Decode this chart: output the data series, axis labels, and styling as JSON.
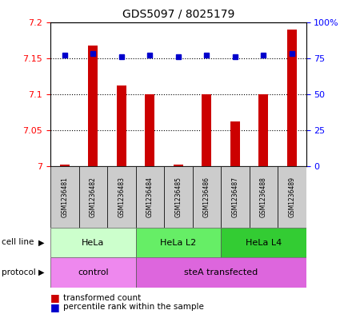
{
  "title": "GDS5097 / 8025179",
  "samples": [
    "GSM1236481",
    "GSM1236482",
    "GSM1236483",
    "GSM1236484",
    "GSM1236485",
    "GSM1236486",
    "GSM1236487",
    "GSM1236488",
    "GSM1236489"
  ],
  "bar_values": [
    7.002,
    7.167,
    7.112,
    7.1,
    7.002,
    7.1,
    7.062,
    7.1,
    7.19
  ],
  "percentile_values": [
    77,
    78,
    76,
    77,
    76,
    77,
    76,
    77,
    78
  ],
  "ylim_left": [
    7.0,
    7.2
  ],
  "ylim_right": [
    0,
    100
  ],
  "yticks_left": [
    7.0,
    7.05,
    7.1,
    7.15,
    7.2
  ],
  "yticks_right": [
    0,
    25,
    50,
    75,
    100
  ],
  "ytick_labels_left": [
    "7",
    "7.05",
    "7.1",
    "7.15",
    "7.2"
  ],
  "ytick_labels_right": [
    "0",
    "25",
    "50",
    "75",
    "100%"
  ],
  "bar_color": "#cc0000",
  "dot_color": "#0000cc",
  "bar_width": 0.35,
  "cell_line_groups": [
    {
      "label": "HeLa",
      "start": 0,
      "end": 3,
      "color": "#ccffcc"
    },
    {
      "label": "HeLa L2",
      "start": 3,
      "end": 6,
      "color": "#66ee66"
    },
    {
      "label": "HeLa L4",
      "start": 6,
      "end": 9,
      "color": "#33cc33"
    }
  ],
  "protocol_groups": [
    {
      "label": "control",
      "start": 0,
      "end": 3,
      "color": "#ee88ee"
    },
    {
      "label": "steA transfected",
      "start": 3,
      "end": 9,
      "color": "#dd66dd"
    }
  ],
  "sample_box_color": "#cccccc",
  "legend_items": [
    {
      "color": "#cc0000",
      "label": "transformed count"
    },
    {
      "color": "#0000cc",
      "label": "percentile rank within the sample"
    }
  ]
}
